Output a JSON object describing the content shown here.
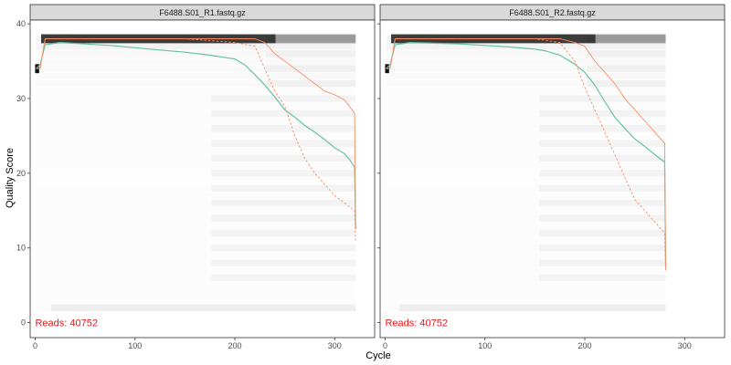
{
  "figure": {
    "x_axis_title": "Cycle",
    "y_axis_title": "Quality Score",
    "colors": {
      "mean_line": "#66c2a5",
      "quantile_lines": "#fc8d62",
      "reads_label": "#e41a1c",
      "panel_border": "#333333",
      "strip_fill": "#d9d9d9",
      "heatmap_tile": "#bdbdbd"
    }
  },
  "chart_data": [
    {
      "type": "heatmap",
      "title": "F6488.S01_R1.fastq.gz",
      "reads_label": "Reads:  40752",
      "xlim": [
        -5,
        340
      ],
      "ylim": [
        -2,
        40.5
      ],
      "x_ticks": [
        0,
        100,
        200,
        300
      ],
      "y_ticks": [
        0,
        10,
        20,
        30,
        40
      ],
      "grid": false,
      "max_cycle": 321,
      "series": [
        {
          "name": "mean",
          "style": "solid",
          "x": [
            1,
            5,
            10,
            25,
            50,
            75,
            100,
            125,
            150,
            175,
            200,
            210,
            220,
            230,
            240,
            250,
            260,
            270,
            280,
            290,
            300,
            310,
            315,
            320,
            321
          ],
          "y": [
            34,
            34.5,
            37.2,
            37.5,
            37.3,
            37.1,
            36.8,
            36.5,
            36.2,
            35.8,
            35.3,
            34.5,
            33.2,
            31.8,
            30.2,
            28.5,
            27.5,
            26.4,
            25.5,
            24.5,
            23.4,
            22.6,
            21.8,
            20.8,
            12.5
          ]
        },
        {
          "name": "median",
          "style": "solid",
          "x": [
            1,
            5,
            10,
            50,
            100,
            150,
            200,
            220,
            230,
            240,
            250,
            260,
            270,
            280,
            290,
            300,
            310,
            320,
            321
          ],
          "y": [
            34,
            34,
            38,
            38,
            38,
            38,
            38,
            38,
            37.5,
            36,
            35,
            34,
            33,
            32,
            31,
            30.5,
            29.8,
            28,
            14
          ]
        },
        {
          "name": "q25",
          "style": "dashed",
          "x": [
            1,
            5,
            10,
            50,
            100,
            150,
            200,
            220,
            230,
            240,
            250,
            260,
            270,
            280,
            290,
            300,
            310,
            320,
            321
          ],
          "y": [
            34,
            34,
            38,
            38,
            38,
            38,
            37.5,
            37,
            34,
            31,
            29,
            25,
            22,
            20,
            18.5,
            17,
            16,
            15,
            11
          ]
        }
      ]
    },
    {
      "type": "heatmap",
      "title": "F6488.S01_R2.fastq.gz",
      "reads_label": "Reads:  40752",
      "xlim": [
        -5,
        340
      ],
      "ylim": [
        -2,
        40.5
      ],
      "x_ticks": [
        0,
        100,
        200,
        300
      ],
      "y_ticks": [
        0,
        10,
        20,
        30,
        40
      ],
      "grid": false,
      "max_cycle": 281,
      "series": [
        {
          "name": "mean",
          "style": "solid",
          "x": [
            1,
            5,
            10,
            25,
            50,
            75,
            100,
            125,
            150,
            160,
            175,
            190,
            200,
            210,
            220,
            230,
            240,
            250,
            260,
            270,
            280,
            281
          ],
          "y": [
            34,
            34.5,
            37.2,
            37.5,
            37.4,
            37.3,
            37.1,
            36.9,
            36.6,
            36.4,
            35.8,
            34.6,
            33.5,
            31.8,
            29.6,
            27.5,
            26,
            24.6,
            23.6,
            22.5,
            21.5,
            7.5
          ]
        },
        {
          "name": "median",
          "style": "solid",
          "x": [
            1,
            5,
            10,
            50,
            100,
            150,
            175,
            190,
            200,
            210,
            220,
            230,
            240,
            250,
            260,
            270,
            280,
            281
          ],
          "y": [
            34,
            34,
            38,
            38,
            38,
            38,
            38,
            37.5,
            37,
            35,
            33.5,
            32,
            30,
            28.5,
            27,
            25.5,
            24,
            7
          ]
        },
        {
          "name": "q25",
          "style": "dashed",
          "x": [
            1,
            5,
            10,
            50,
            100,
            150,
            175,
            190,
            200,
            210,
            220,
            230,
            240,
            250,
            260,
            270,
            280,
            281
          ],
          "y": [
            34,
            34,
            38,
            38,
            38,
            38,
            37.5,
            35,
            31.5,
            28.5,
            25.5,
            22.5,
            19.5,
            16.5,
            15,
            13.5,
            12,
            7
          ]
        }
      ]
    }
  ]
}
